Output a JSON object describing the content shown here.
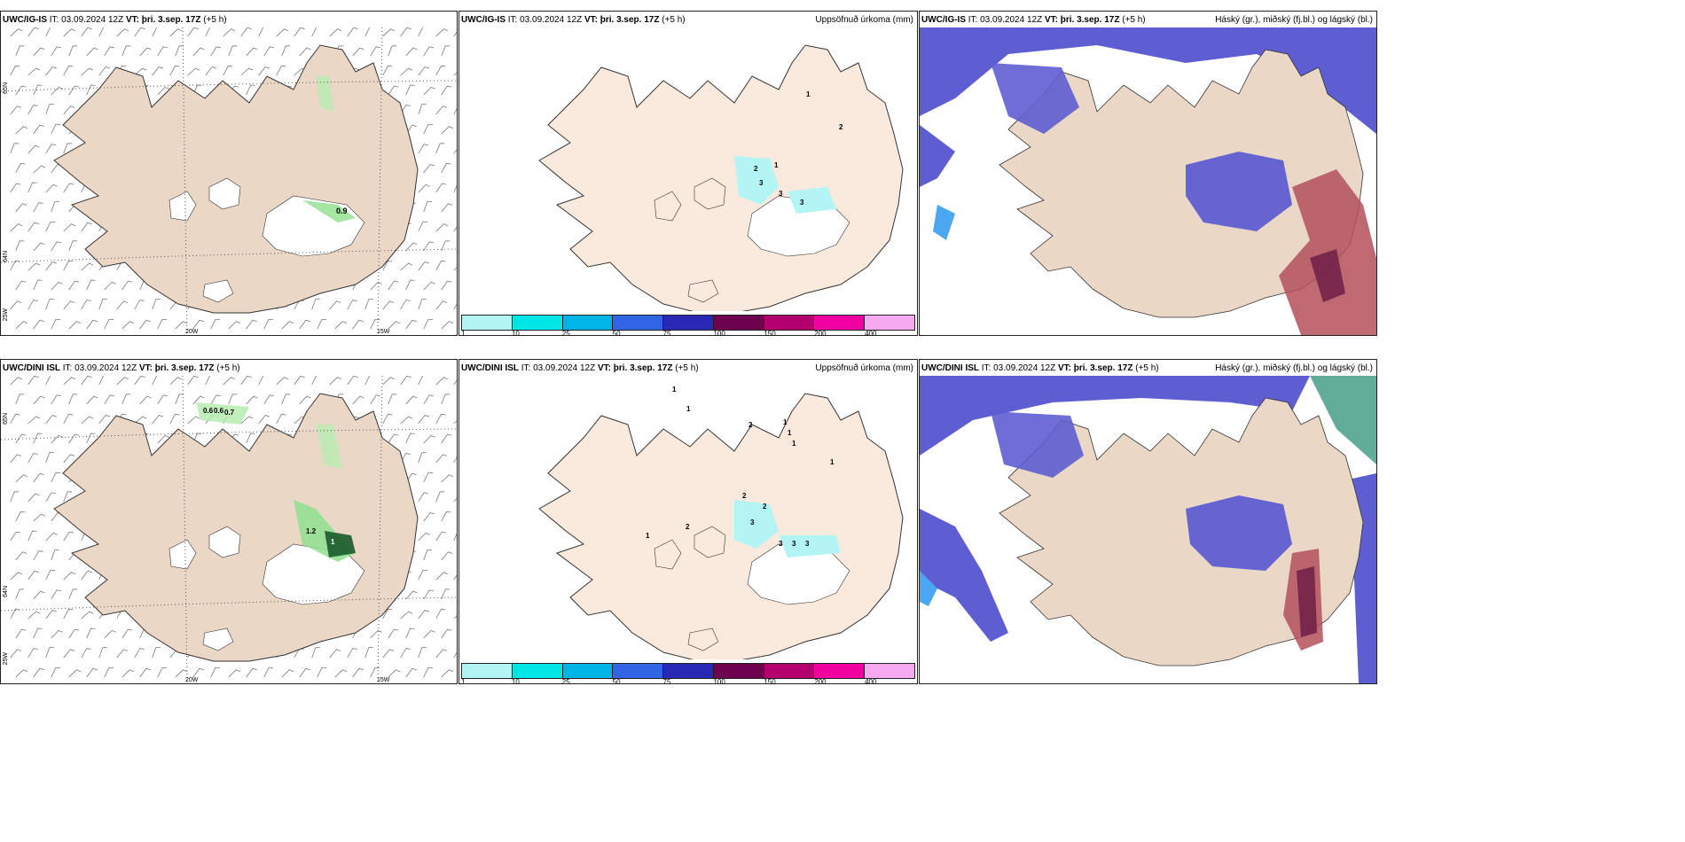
{
  "rows": [
    {
      "model": "UWC/IG-IS",
      "it_label": "IT:",
      "it": "03.09.2024 12Z",
      "vt_label": "VT:",
      "vt": "þri. 3.sep. 17Z",
      "lead": "(+5 h)",
      "wind_labels": [
        "0.9"
      ],
      "precip_labels": [
        "1",
        "2",
        "2",
        "1",
        "3",
        "3",
        "3"
      ]
    },
    {
      "model": "UWC/DINI ISL",
      "it_label": "IT:",
      "it": "03.09.2024 12Z",
      "vt_label": "VT:",
      "vt": "þri. 3.sep. 17Z",
      "lead": "(+5 h)",
      "wind_labels": [
        "0.6",
        "0.6",
        "0.7",
        "1.2",
        "1"
      ],
      "precip_labels": [
        "1",
        "1",
        "2",
        "1",
        "1",
        "1",
        "1",
        "2",
        "3",
        "2",
        "3",
        "3",
        "3",
        "2",
        "1"
      ]
    }
  ],
  "precip_title": "Uppsöfnuð úrkoma (mm)",
  "cloud_title": "Háský (gr.), miðský (fj.bl.) og lágský (bl.)",
  "axes": {
    "lat_65": "65N",
    "lat_64": "64N",
    "lon_20": "20W",
    "lon_15": "15W",
    "lon_25": "25W"
  },
  "scale": {
    "ticks": [
      "1",
      "10",
      "25",
      "50",
      "75",
      "100",
      "150",
      "200",
      "400"
    ],
    "colors": [
      "#b3f5f5",
      "#00e5e5",
      "#00b4e6",
      "#3264e6",
      "#2828b4",
      "#6e0050",
      "#b4006e",
      "#f000a0",
      "#f5aaf0"
    ]
  },
  "colors": {
    "land": "#ead7c5",
    "land_light": "#faeadd",
    "glacier": "#ffffff",
    "low_cloud": "#5e5ed2",
    "mid_cloud": "#4aa8f0",
    "high_cloud": "#b4505a",
    "precip_green": "#8ee08e"
  }
}
